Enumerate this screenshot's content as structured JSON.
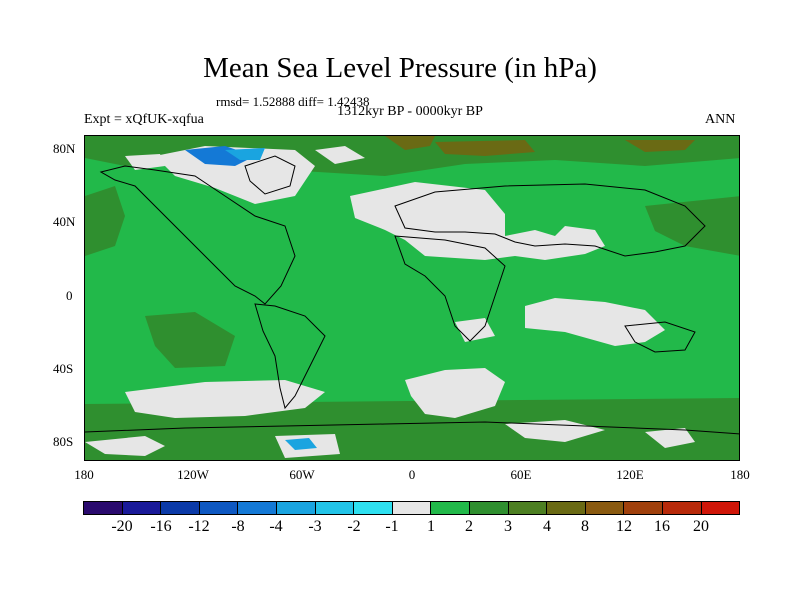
{
  "title": "Mean Sea Level Pressure (in hPa)",
  "stats": "rmsd= 1.52888  diff= 1.42438",
  "period": "1312kyr BP - 0000kyr BP",
  "experiment": "Expt = xQfUK-xqfua",
  "season": "ANN",
  "axes": {
    "lat_labels": [
      "80N",
      "40N",
      "0",
      "40S",
      "80S"
    ],
    "lon_labels": [
      "180",
      "120W",
      "60W",
      "0",
      "60E",
      "120E",
      "180"
    ]
  },
  "colorbar": {
    "labels": [
      "-20",
      "-16",
      "-12",
      "-8",
      "-4",
      "-3",
      "-2",
      "-1",
      "1",
      "2",
      "3",
      "4",
      "8",
      "12",
      "16",
      "20"
    ],
    "colors": [
      "#2a0a6e",
      "#1a1a99",
      "#0b3aa8",
      "#0e58c2",
      "#1479d6",
      "#1aa4e0",
      "#22c4e8",
      "#2ee0f0",
      "#e6e6e6",
      "#22b94a",
      "#2f8f2f",
      "#4d7f22",
      "#6a6a14",
      "#8a5a10",
      "#a0400c",
      "#b82a0a",
      "#d01608"
    ]
  },
  "chart_data": {
    "type": "heatmap",
    "title": "Mean Sea Level Pressure (in hPa)",
    "subtitle": "1312kyr BP - 0000kyr BP",
    "x_range": [
      -180,
      180
    ],
    "y_range": [
      -90,
      90
    ],
    "x_ticks": [
      "180",
      "120W",
      "60W",
      "0",
      "60E",
      "120E",
      "180"
    ],
    "y_ticks": [
      "80N",
      "40N",
      "0",
      "40S",
      "80S"
    ],
    "contour_levels": [
      -20,
      -16,
      -12,
      -8,
      -4,
      -3,
      -2,
      -1,
      1,
      2,
      3,
      4,
      8,
      12,
      16,
      20
    ],
    "dominant_range": "1 to 2 hPa",
    "rmsd": 1.52888,
    "diff": 1.42438
  }
}
